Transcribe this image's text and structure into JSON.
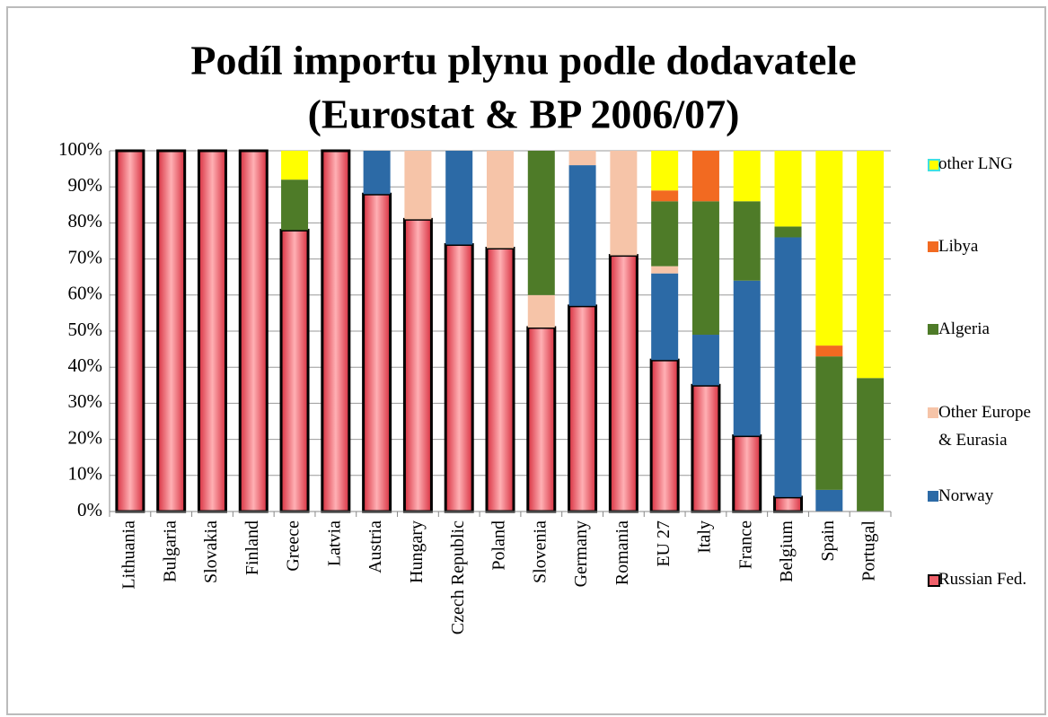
{
  "chart_data": {
    "type": "stacked_bar",
    "title": [
      "Podíl importu plynu podle dodavatele",
      "(Eurostat & BP 2006/07)"
    ],
    "categories": [
      "Lithuania",
      "Bulgaria",
      "Slovakia",
      "Finland",
      "Greece",
      "Latvia",
      "Austria",
      "Hungary",
      "Czech Republic",
      "Poland",
      "Slovenia",
      "Germany",
      "Romania",
      "EU 27",
      "Italy",
      "France",
      "Belgium",
      "Spain",
      "Portugal"
    ],
    "series": [
      {
        "name": "Russian Fed.",
        "color": "#f0606a",
        "edgecolor": "#000000",
        "values": [
          100,
          100,
          100,
          100,
          78,
          100,
          88,
          81,
          74,
          73,
          51,
          57,
          71,
          42,
          35,
          21,
          4,
          0,
          0
        ]
      },
      {
        "name": "Norway",
        "color": "#2c6aa6",
        "values": [
          0,
          0,
          0,
          0,
          0,
          0,
          12,
          0,
          26,
          0,
          0,
          39,
          0,
          24,
          14,
          43,
          72,
          6,
          0
        ]
      },
      {
        "name": "Other Europe & Eurasia",
        "color": "#f6c4a8",
        "values": [
          0,
          0,
          0,
          0,
          0,
          0,
          0,
          19,
          0,
          27,
          9,
          4,
          29,
          2,
          0,
          0,
          0,
          0,
          0
        ]
      },
      {
        "name": "Algeria",
        "color": "#4e7b28",
        "values": [
          0,
          0,
          0,
          0,
          14,
          0,
          0,
          0,
          0,
          0,
          40,
          0,
          0,
          18,
          37,
          22,
          3,
          37,
          37
        ]
      },
      {
        "name": "Libya",
        "color": "#f26a21",
        "values": [
          0,
          0,
          0,
          0,
          0,
          0,
          0,
          0,
          0,
          0,
          0,
          0,
          0,
          3,
          14,
          0,
          0,
          3,
          0
        ]
      },
      {
        "name": "other LNG",
        "color": "#ffff00",
        "values": [
          0,
          0,
          0,
          0,
          8,
          0,
          0,
          0,
          0,
          0,
          0,
          0,
          0,
          11,
          0,
          14,
          21,
          54,
          63
        ]
      }
    ],
    "ylim": [
      0,
      100
    ],
    "yticks": [
      {
        "value": 0,
        "label": "0%"
      },
      {
        "value": 10,
        "label": "10%"
      },
      {
        "value": 20,
        "label": "20%"
      },
      {
        "value": 30,
        "label": "30%"
      },
      {
        "value": 40,
        "label": "40%"
      },
      {
        "value": 50,
        "label": "50%"
      },
      {
        "value": 60,
        "label": "60%"
      },
      {
        "value": 70,
        "label": "70%"
      },
      {
        "value": 80,
        "label": "80%"
      },
      {
        "value": 90,
        "label": "90%"
      },
      {
        "value": 100,
        "label": "100%"
      }
    ],
    "grid": true
  }
}
